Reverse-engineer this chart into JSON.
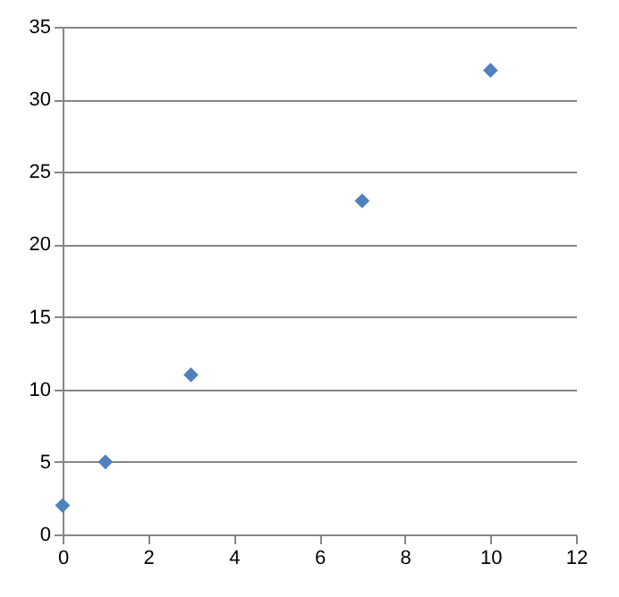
{
  "chart_data": {
    "type": "scatter",
    "x": [
      0,
      1,
      3,
      7,
      10
    ],
    "series": [
      {
        "color": "#4f81bd",
        "values": [
          2,
          5,
          11,
          23,
          32
        ]
      }
    ],
    "xlim": [
      0,
      12
    ],
    "xticks": [
      0,
      2,
      4,
      6,
      8,
      10,
      12
    ],
    "ylim": [
      0,
      35
    ],
    "yticks": [
      0,
      5,
      10,
      15,
      20,
      25,
      30,
      35
    ],
    "grid": "y",
    "marker": "diamond"
  }
}
